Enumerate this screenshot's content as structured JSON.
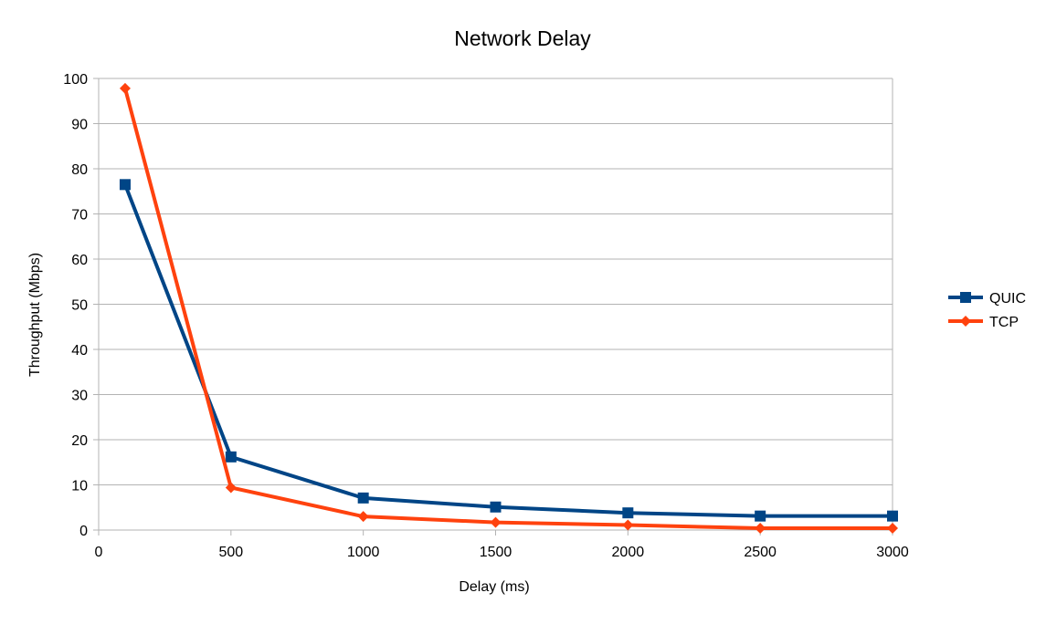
{
  "chart_data": {
    "type": "line",
    "title": "Network Delay",
    "xlabel": "Delay (ms)",
    "ylabel": "Throughput (Mbps)",
    "xlim": [
      0,
      3000
    ],
    "ylim": [
      0,
      100
    ],
    "x_ticks": [
      0,
      500,
      1000,
      1500,
      2000,
      2500,
      3000
    ],
    "y_ticks": [
      0,
      10,
      20,
      30,
      40,
      50,
      60,
      70,
      80,
      90,
      100
    ],
    "grid": "horizontal",
    "legend_position": "right",
    "x": [
      100,
      500,
      1000,
      1500,
      2000,
      2500,
      3000
    ],
    "series": [
      {
        "name": "QUIC",
        "color": "#004586",
        "marker": "square",
        "values": [
          76.5,
          16.2,
          7.1,
          5.1,
          3.8,
          3.1,
          3.1
        ]
      },
      {
        "name": "TCP",
        "color": "#ff420e",
        "marker": "diamond",
        "values": [
          97.8,
          9.4,
          3.0,
          1.7,
          1.1,
          0.4,
          0.4
        ]
      }
    ]
  }
}
